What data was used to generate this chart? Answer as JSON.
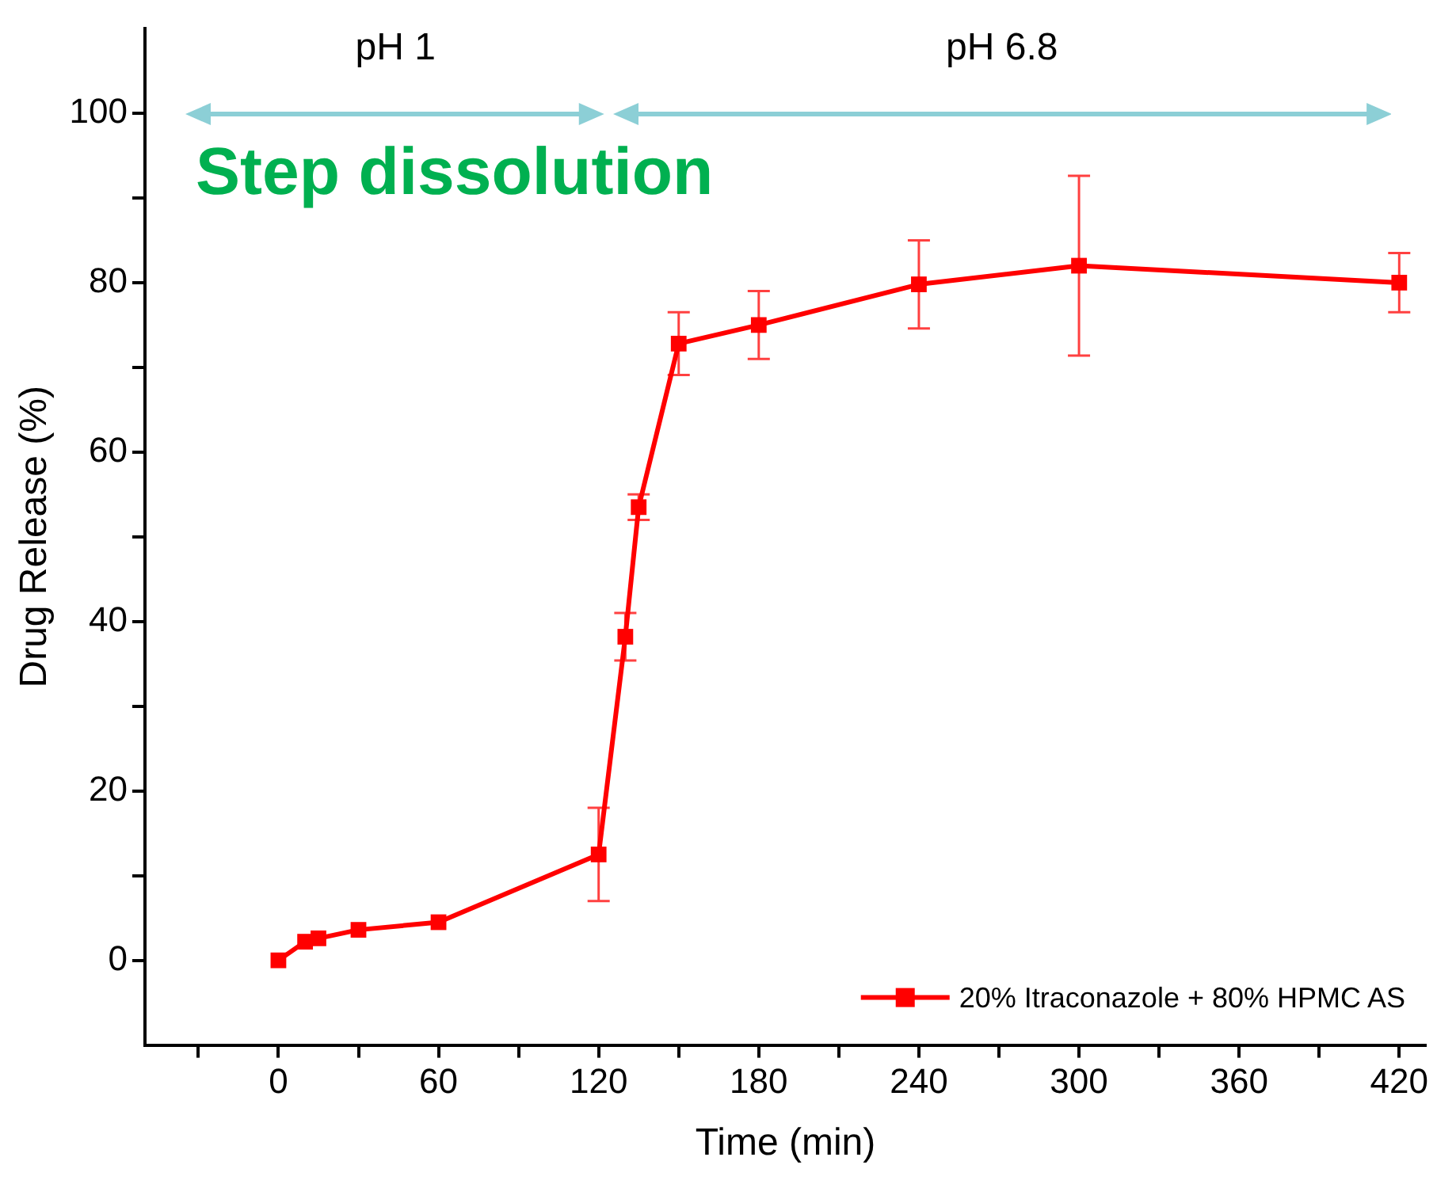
{
  "chart_data": {
    "type": "line",
    "xlabel": "Time (min)",
    "ylabel": "Drug Release (%)",
    "x": [
      0,
      10,
      15,
      30,
      60,
      120,
      130,
      135,
      150,
      180,
      240,
      300,
      420
    ],
    "series": [
      {
        "name": "20% Itraconazole + 80% HPMC AS",
        "color": "#ff0000",
        "values": [
          0,
          2.2,
          2.6,
          3.6,
          4.5,
          12.5,
          38.2,
          53.5,
          72.8,
          75,
          79.8,
          82,
          80
        ],
        "errors": [
          null,
          null,
          null,
          null,
          null,
          5.5,
          2.8,
          1.5,
          3.7,
          4,
          5.2,
          10.6,
          3.5
        ]
      }
    ],
    "xlim": [
      -50,
      430
    ],
    "xticks": [
      {
        "value": -30,
        "label": null
      },
      0,
      {
        "value": 30,
        "label": null
      },
      60,
      {
        "value": 90,
        "label": null
      },
      120,
      {
        "value": 150,
        "label": null
      },
      180,
      {
        "value": 210,
        "label": null
      },
      240,
      {
        "value": 270,
        "label": null
      },
      300,
      {
        "value": 330,
        "label": null
      },
      360,
      {
        "value": 390,
        "label": null
      },
      420
    ],
    "ylim": [
      -10,
      110
    ],
    "yticks": [
      0,
      {
        "value": 10,
        "label": null
      },
      20,
      {
        "value": 30,
        "label": null
      },
      40,
      {
        "value": 50,
        "label": null
      },
      60,
      {
        "value": 70,
        "label": null
      },
      80,
      {
        "value": 90,
        "label": null
      },
      100
    ],
    "annotations": [
      "Step dissolution",
      "pH 1",
      "pH 6.8"
    ],
    "legend": "bottom right",
    "marker": "square",
    "line_style": "solid"
  }
}
